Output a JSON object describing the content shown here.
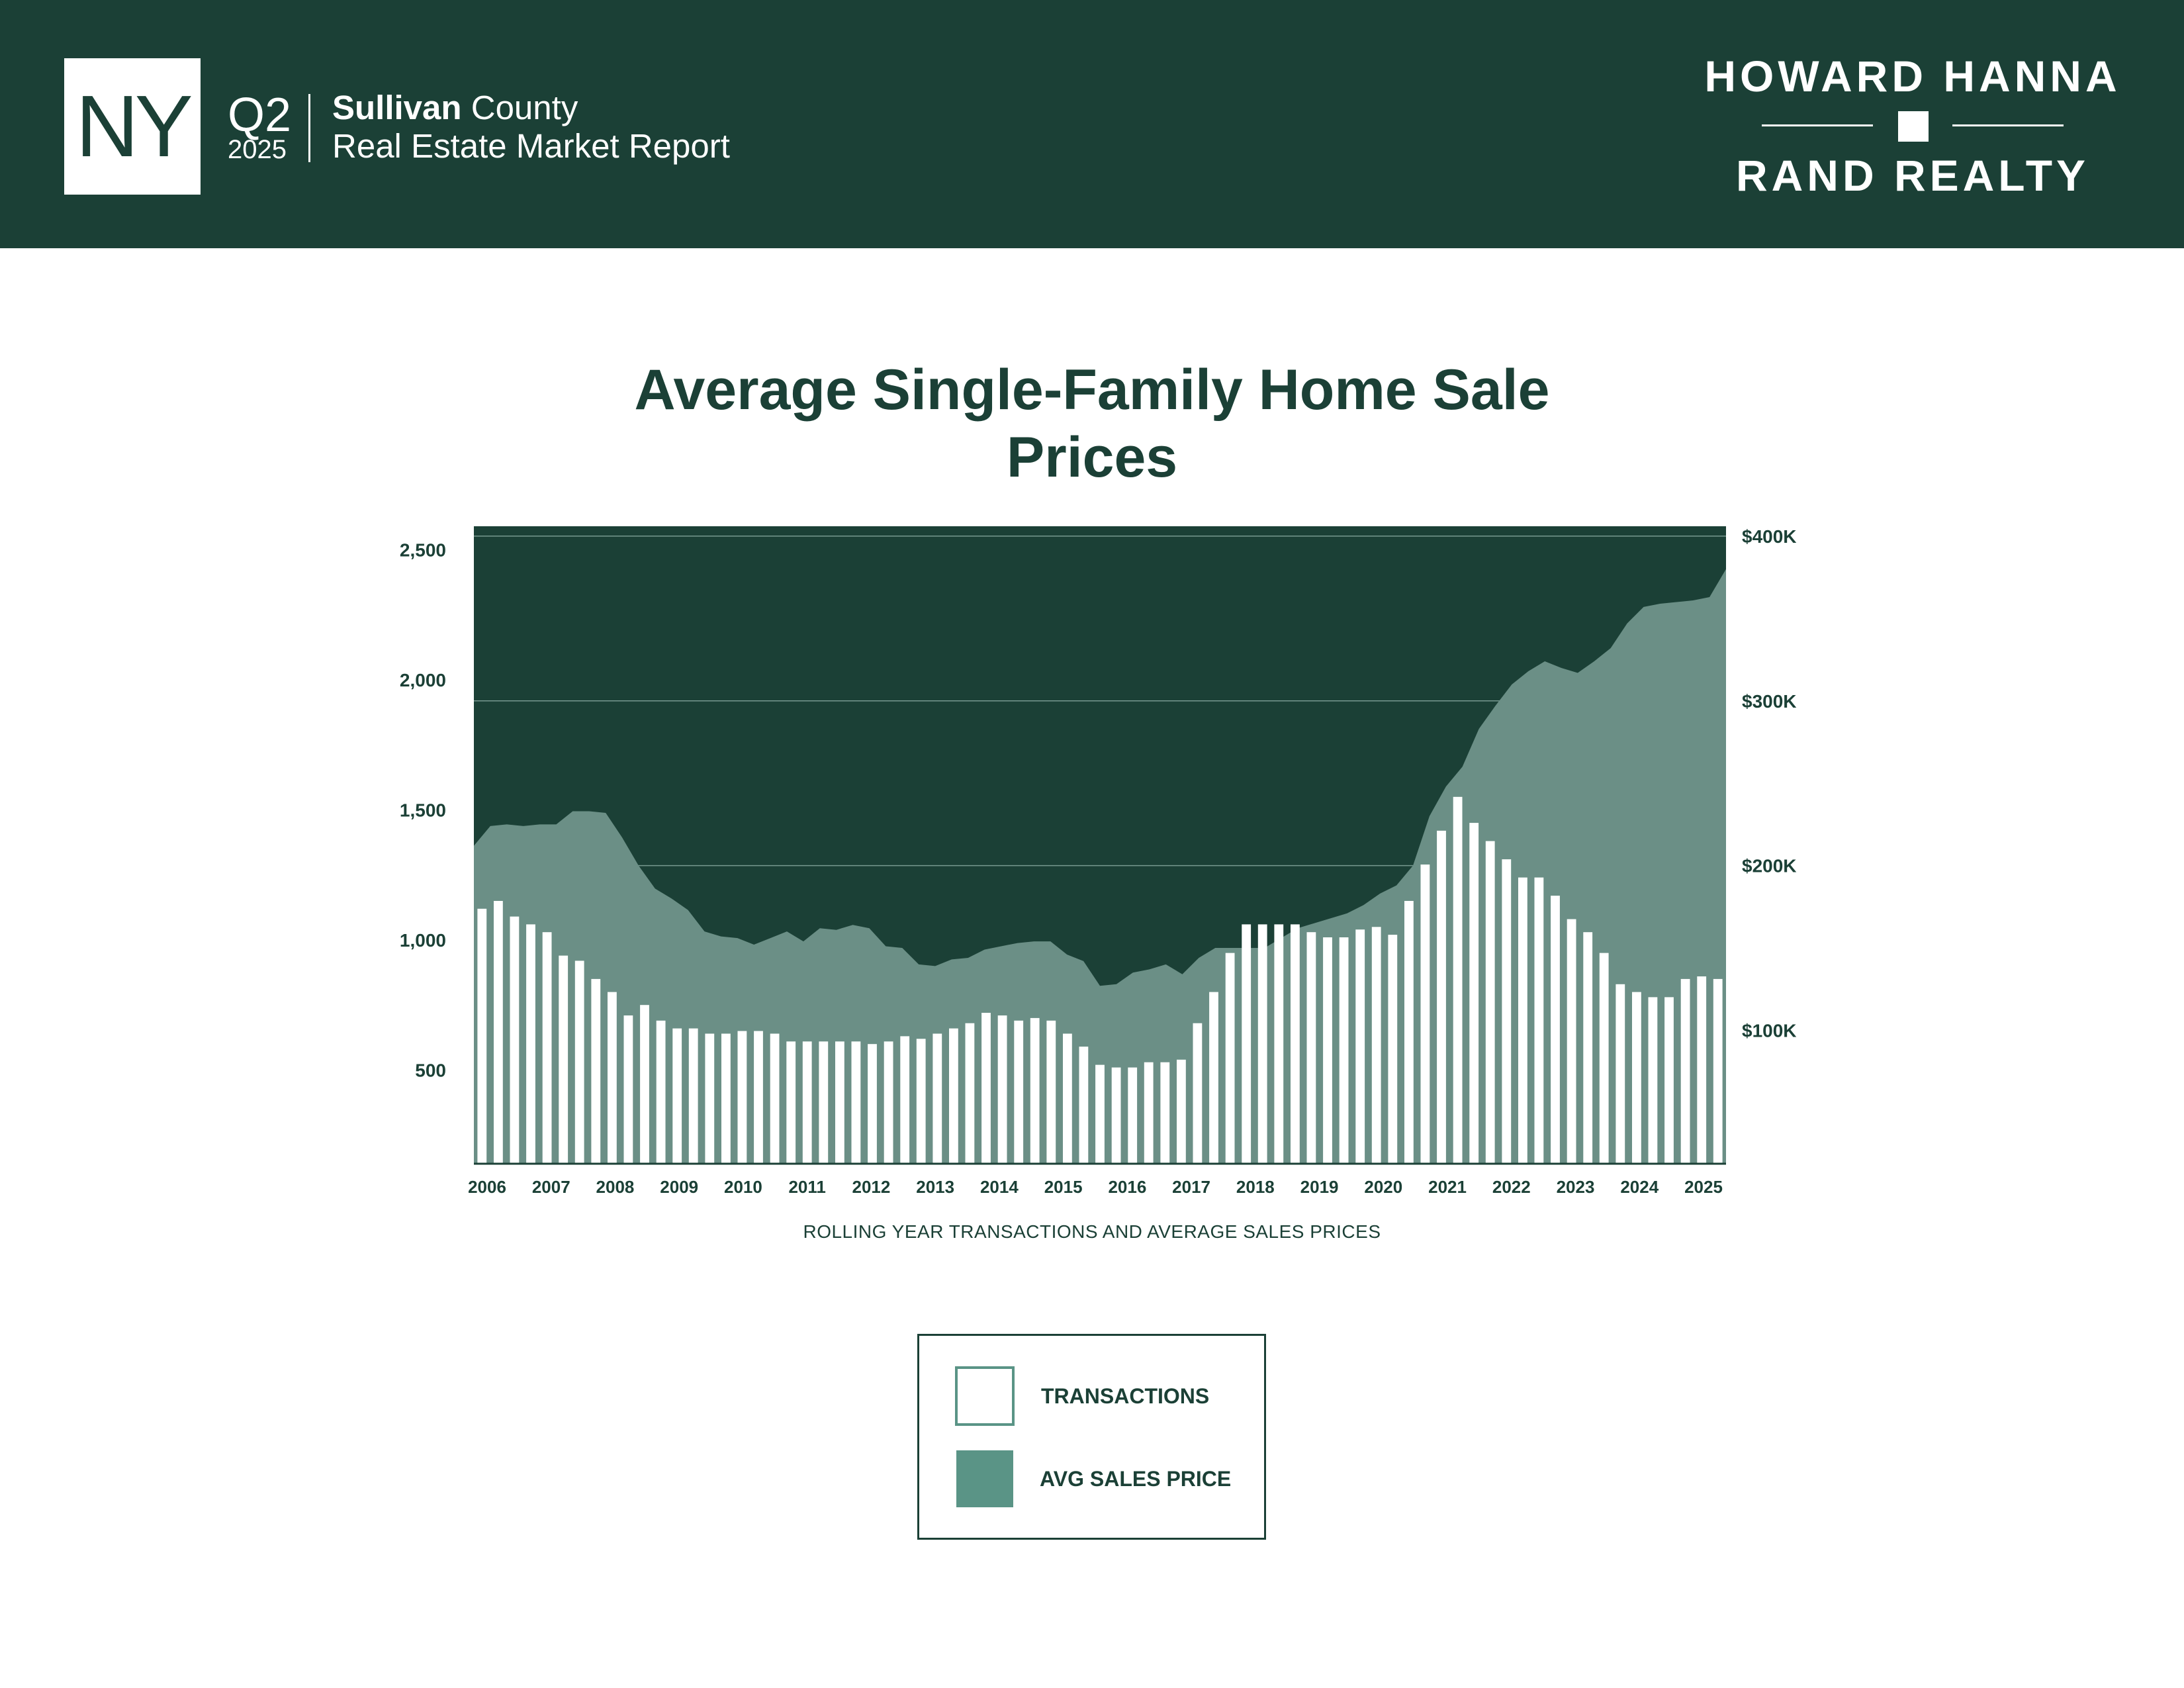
{
  "header": {
    "state": "NY",
    "quarter": "Q2",
    "year": "2025",
    "county": "Sullivan",
    "county_suffix": " County",
    "report_title": "Real Estate Market Report",
    "brand_top": "HOWARD HANNA",
    "brand_bottom": "RAND REALTY"
  },
  "colors": {
    "header_bg": "#1b4036",
    "plot_bg": "#1b4036",
    "price_area": "#6b8f86",
    "bars": "#ffffff",
    "legend_swatch": "#5a9486"
  },
  "chart_data": {
    "type": "bar",
    "title": "Average Single-Family Home Sale Prices",
    "caption": "ROLLING YEAR TRANSACTIONS AND AVERAGE SALES PRICES",
    "x_tick_labels": [
      "2006",
      "2007",
      "2008",
      "2009",
      "2010",
      "2011",
      "2012",
      "2013",
      "2014",
      "2015",
      "2016",
      "2017",
      "2018",
      "2019",
      "2020",
      "2021",
      "2022",
      "2023",
      "2024",
      "2025"
    ],
    "left_axis": {
      "ticks": [
        500,
        1000,
        1500,
        2000,
        2500
      ],
      "tick_labels": [
        "500",
        "1,000",
        "1,500",
        "2,000",
        "2,500"
      ],
      "ylim": [
        140,
        2590
      ]
    },
    "right_axis": {
      "ticks": [
        100,
        200,
        300,
        400
      ],
      "tick_labels": [
        "$100K",
        "$200K",
        "$300K",
        "$400K"
      ],
      "ylim": [
        19,
        406
      ]
    },
    "grid": true,
    "legend_position": "below",
    "series": [
      {
        "name": "TRANSACTIONS",
        "type": "bar",
        "axis": "left",
        "values": [
          1120,
          1150,
          1090,
          1060,
          1030,
          940,
          920,
          850,
          800,
          710,
          750,
          690,
          660,
          660,
          640,
          640,
          650,
          650,
          640,
          610,
          610,
          610,
          610,
          610,
          600,
          610,
          630,
          620,
          640,
          660,
          680,
          720,
          710,
          690,
          700,
          690,
          640,
          590,
          520,
          510,
          510,
          530,
          530,
          540,
          680,
          800,
          950,
          1060,
          1060,
          1060,
          1060,
          1030,
          1010,
          1010,
          1040,
          1050,
          1020,
          1150,
          1290,
          1420,
          1550,
          1450,
          1380,
          1310,
          1240,
          1240,
          1170,
          1080,
          1030,
          950,
          830,
          800,
          780,
          780,
          850,
          860,
          850
        ]
      },
      {
        "name": "AVG SALES PRICE",
        "type": "area",
        "axis": "right",
        "unit": "$K",
        "values": [
          212,
          224,
          225,
          224,
          225,
          225,
          233,
          233,
          232,
          217,
          200,
          186,
          180,
          173,
          160,
          157,
          156,
          152,
          156,
          160,
          154,
          162,
          161,
          164,
          162,
          151,
          150,
          140,
          139,
          143,
          144,
          149,
          151,
          153,
          154,
          154,
          146,
          142,
          127,
          128,
          135,
          137,
          140,
          134,
          144,
          150,
          150,
          150,
          150,
          156,
          162,
          165,
          168,
          171,
          176,
          183,
          188,
          200,
          230,
          248,
          260,
          283,
          297,
          310,
          318,
          324,
          320,
          317,
          324,
          332,
          347,
          357,
          359,
          360,
          361,
          363,
          380
        ]
      }
    ]
  },
  "legend": {
    "items": [
      {
        "label": "TRANSACTIONS"
      },
      {
        "label": "AVG SALES PRICE"
      }
    ]
  }
}
